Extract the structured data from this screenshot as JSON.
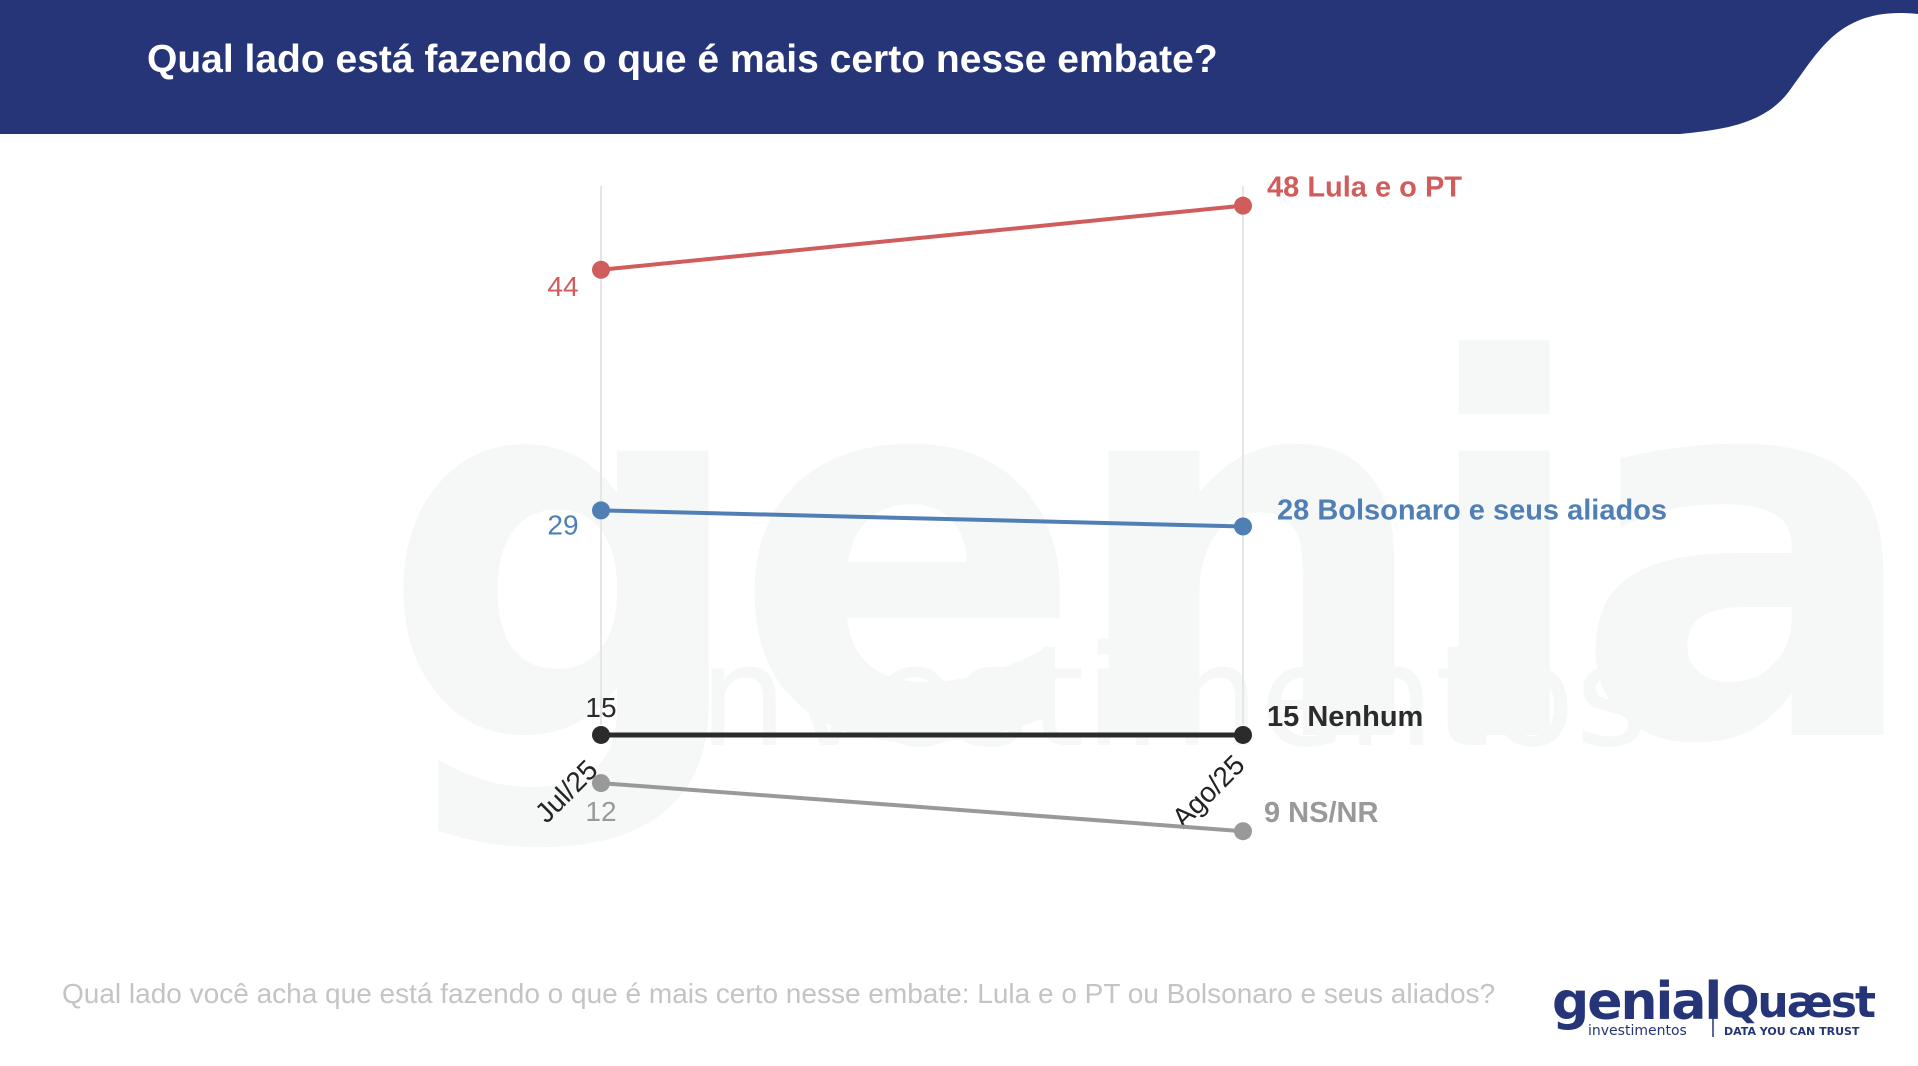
{
  "header": {
    "title": "Qual lado está fazendo o que é mais certo nesse embate?",
    "background_color": "#263578"
  },
  "footnote": "Qual lado você acha que está fazendo o que é mais certo nesse embate: Lula e o PT ou Bolsonaro e seus aliados?",
  "logos": {
    "genial": {
      "word": "genial",
      "sub": "investimentos"
    },
    "quaest": {
      "word": "Quæst",
      "sub": "DATA YOU CAN TRUST"
    }
  },
  "watermark": {
    "word": "genial",
    "sub": "investimentos"
  },
  "chart_data": {
    "type": "line",
    "x": [
      "Jul/25",
      "Ago/25"
    ],
    "ylim": [
      0,
      60
    ],
    "grid": false,
    "legend": "end-labels-right",
    "series": [
      {
        "name": "Lula e o PT",
        "values": [
          44,
          48
        ],
        "color": "#d05c5c"
      },
      {
        "name": "Bolsonaro e seus aliados",
        "values": [
          29,
          28
        ],
        "color": "#4f7fb4"
      },
      {
        "name": "Nenhum",
        "values": [
          15,
          15
        ],
        "color": "#2b2b2b"
      },
      {
        "name": "NS/NR",
        "values": [
          12,
          9
        ],
        "color": "#999999"
      }
    ]
  }
}
